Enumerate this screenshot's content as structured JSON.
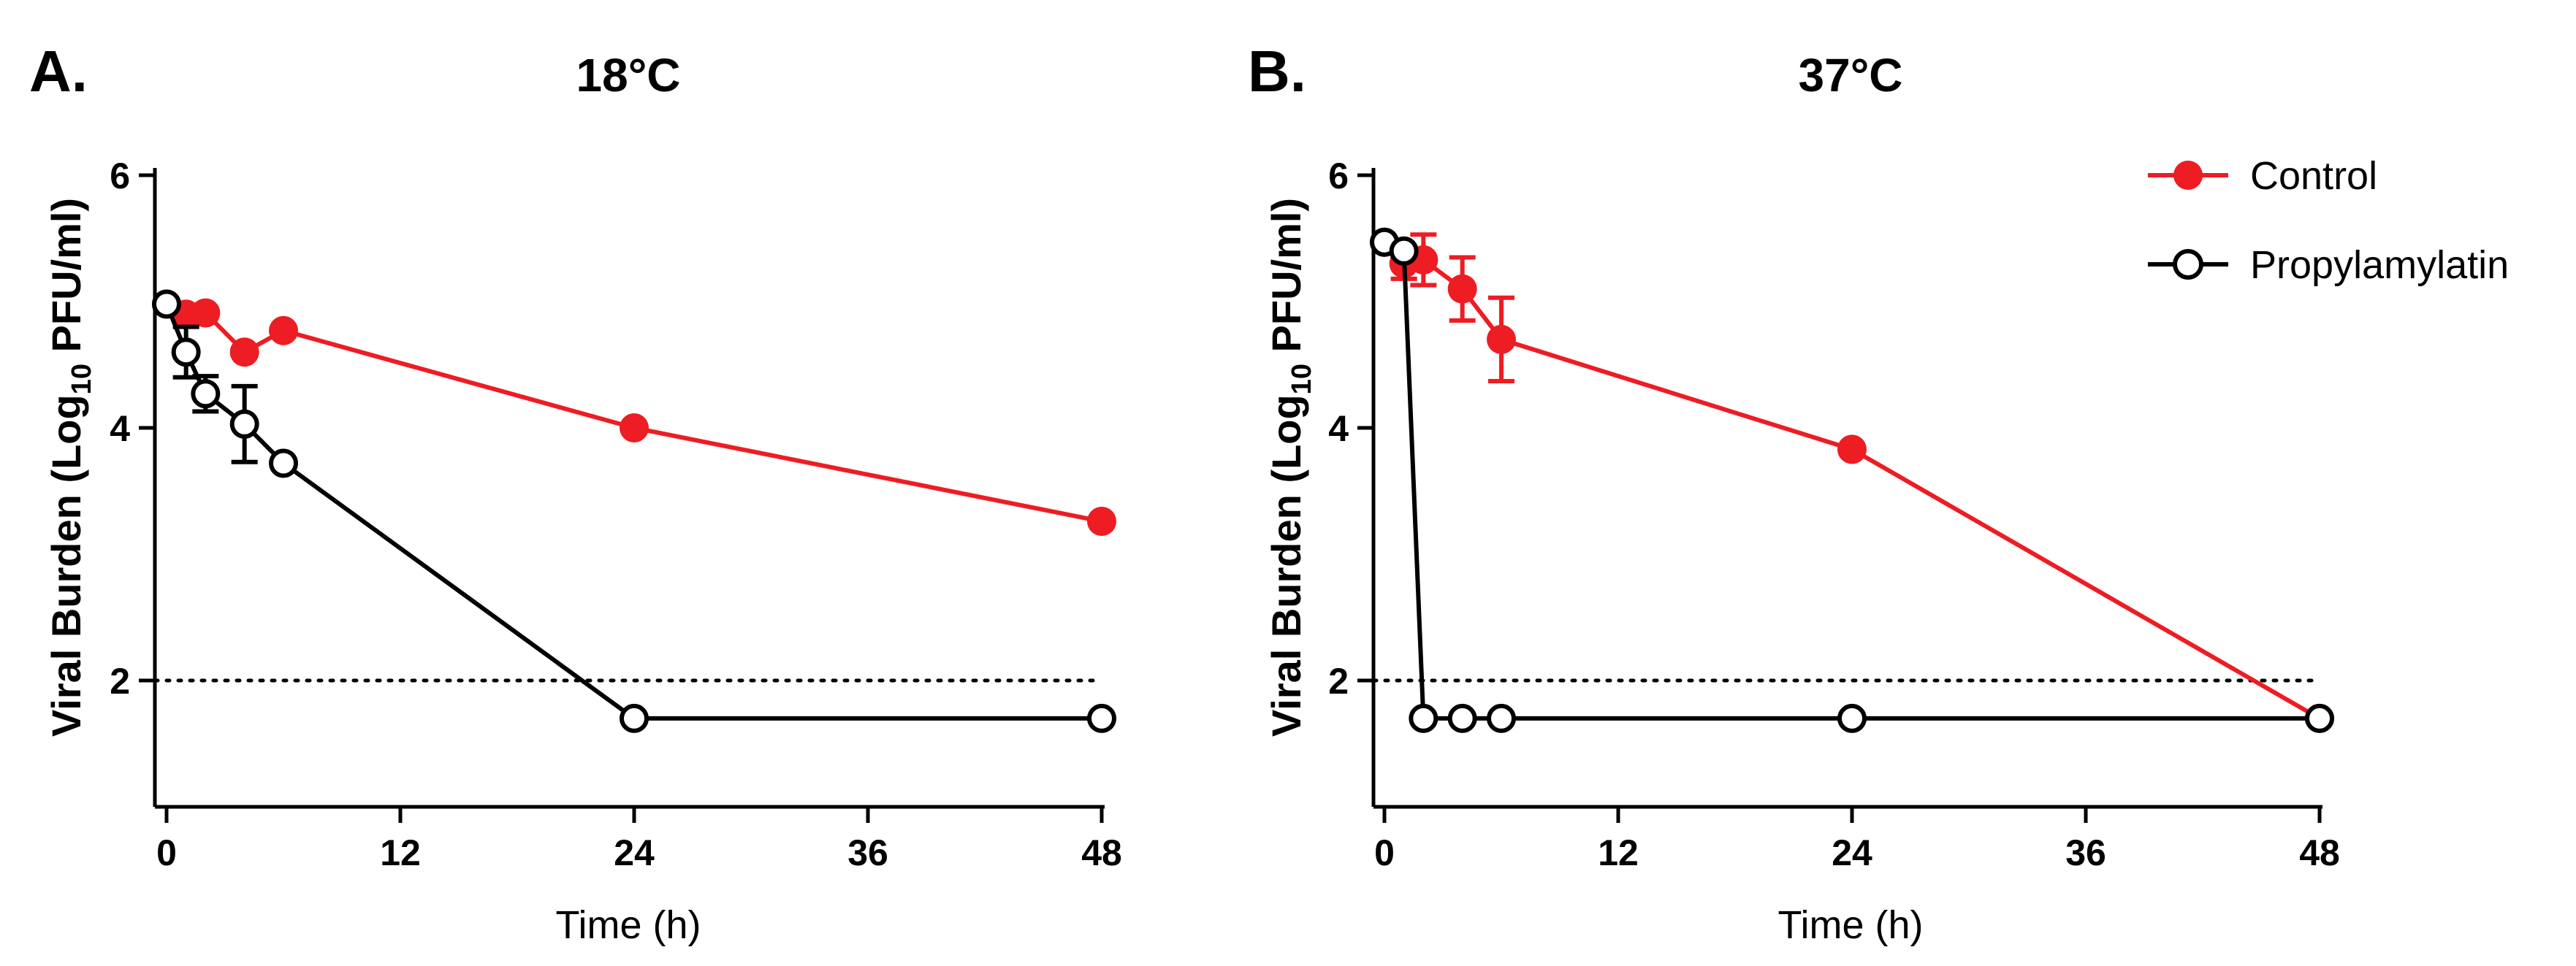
{
  "colors": {
    "control": "#ee1c23",
    "propylamylatin": "#000000"
  },
  "legend": {
    "control_label": "Control",
    "propylamylatin_label": "Propylamylatin"
  },
  "chart_data": [
    {
      "type": "line",
      "panel": "A.",
      "title": "18°C",
      "xlabel": "Time (h)",
      "ylabel": {
        "prefix": "Viral Burden (Log",
        "subscript": "10",
        "suffix": " PFU/ml)"
      },
      "xticks": [
        0,
        12,
        24,
        36,
        48
      ],
      "yticks": [
        2,
        4,
        6
      ],
      "xlim": [
        0,
        48
      ],
      "ylim": [
        1,
        6
      ],
      "grid": false,
      "threshold": 2,
      "legend_position": "top-right",
      "series": [
        {
          "name": "Control",
          "color": "#ee1c23",
          "filled": true,
          "x": [
            0,
            1,
            2,
            4,
            6,
            24,
            48
          ],
          "y": [
            4.98,
            4.9,
            4.91,
            4.6,
            4.77,
            4.0,
            3.26
          ],
          "err": [
            0,
            0,
            0,
            0,
            0,
            0,
            0
          ]
        },
        {
          "name": "Propylamylatin",
          "color": "#000000",
          "filled": false,
          "x": [
            0,
            1,
            2,
            4,
            6,
            24,
            48
          ],
          "y": [
            4.98,
            4.6,
            4.27,
            4.03,
            3.72,
            1.7,
            1.7
          ],
          "err": [
            0,
            0.2,
            0.14,
            0.3,
            0,
            0,
            0
          ]
        }
      ]
    },
    {
      "type": "line",
      "panel": "B.",
      "title": "37°C",
      "xlabel": "Time (h)",
      "ylabel": {
        "prefix": "Viral Burden (Log",
        "subscript": "10",
        "suffix": " PFU/ml)"
      },
      "xticks": [
        0,
        12,
        24,
        36,
        48
      ],
      "yticks": [
        2,
        4,
        6
      ],
      "xlim": [
        0,
        48
      ],
      "ylim": [
        1,
        6
      ],
      "grid": false,
      "threshold": 2,
      "legend_position": "top-right",
      "series": [
        {
          "name": "Control",
          "color": "#ee1c23",
          "filled": true,
          "x": [
            0,
            1,
            2,
            4,
            6,
            24,
            48
          ],
          "y": [
            5.47,
            5.3,
            5.33,
            5.1,
            4.7,
            3.83,
            1.7
          ],
          "err": [
            0,
            0.12,
            0.2,
            0.25,
            0.33,
            0,
            0
          ]
        },
        {
          "name": "Propylamylatin",
          "color": "#000000",
          "filled": false,
          "x": [
            0,
            1,
            2,
            4,
            6,
            24,
            48
          ],
          "y": [
            5.47,
            5.4,
            1.7,
            1.7,
            1.7,
            1.7,
            1.7
          ],
          "err": [
            0,
            0,
            0,
            0,
            0,
            0,
            0
          ]
        }
      ]
    }
  ]
}
